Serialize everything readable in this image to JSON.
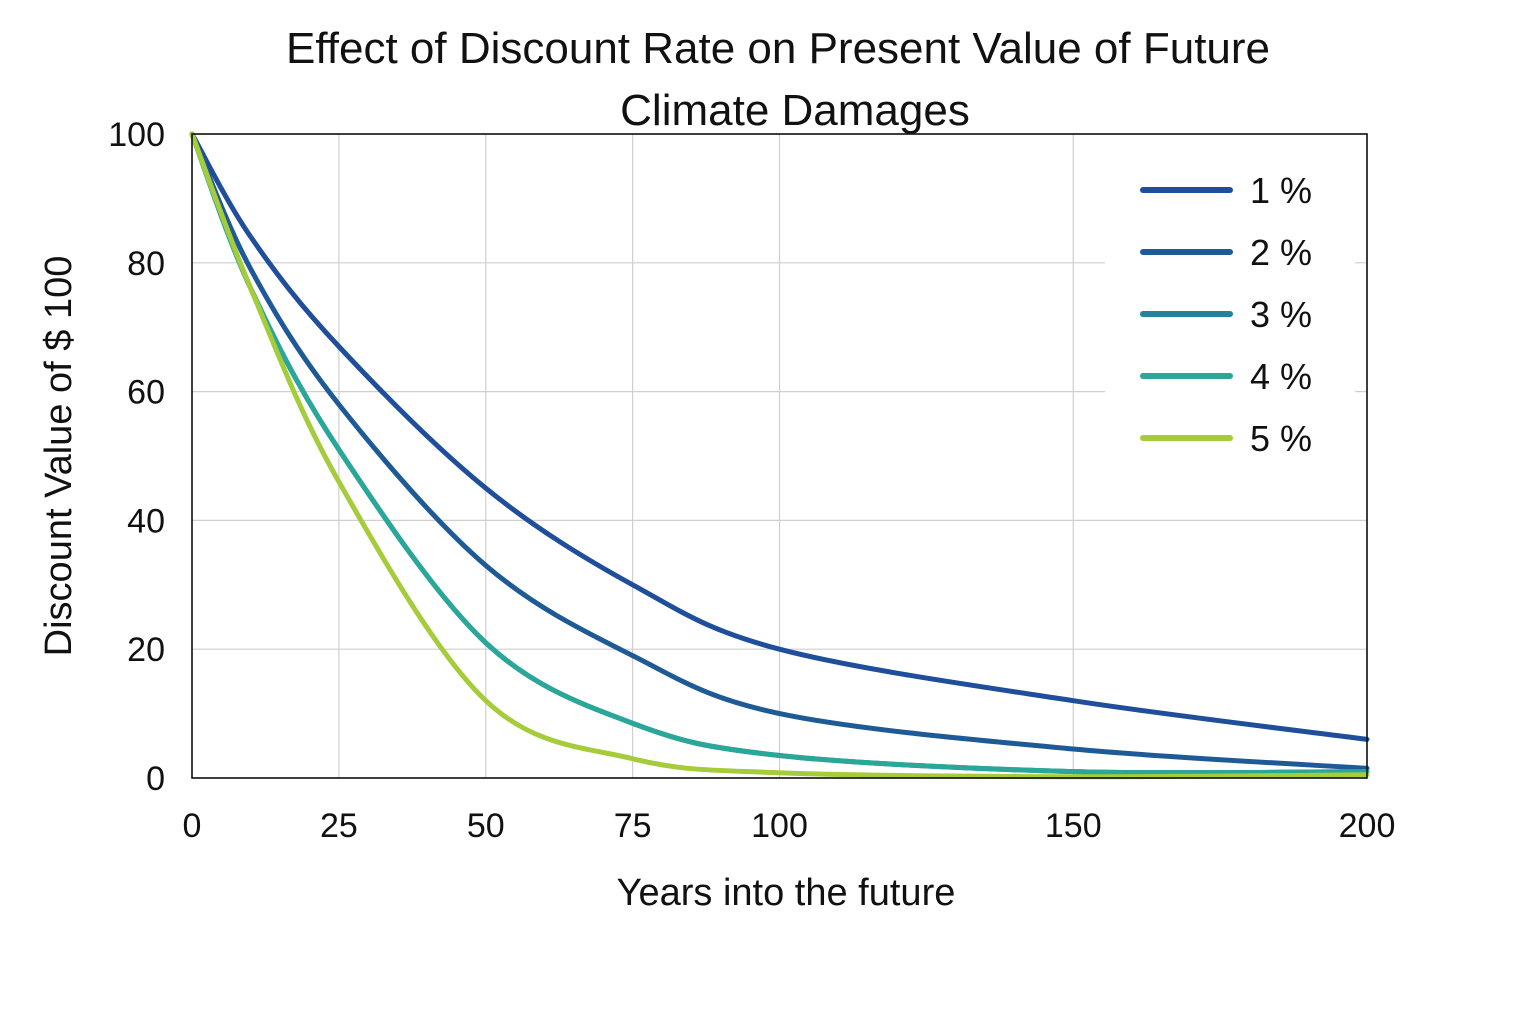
{
  "chart_data": {
    "type": "line",
    "title": [
      "Effect of Discount Rate on Present Value of Future",
      "Climate Damages"
    ],
    "xlabel": "Years into the future",
    "ylabel": "Discount Value of $ 100",
    "xlim": [
      0,
      200
    ],
    "ylim": [
      0,
      100
    ],
    "x_ticks": [
      0,
      25,
      50,
      75,
      100,
      150,
      200
    ],
    "y_ticks": [
      0,
      20,
      40,
      60,
      80,
      100
    ],
    "grid": true,
    "legend_position": "top-right",
    "x": [
      0,
      10,
      25,
      50,
      75,
      100,
      150,
      200
    ],
    "series": [
      {
        "name": "1 %",
        "color": "#1f4e9a",
        "values": [
          100,
          84,
          67,
          45,
          30,
          20,
          12,
          6
        ]
      },
      {
        "name": "2 %",
        "color": "#1e5a96",
        "values": [
          100,
          79,
          58,
          33,
          19,
          10,
          4.5,
          1.5
        ]
      },
      {
        "name": "3 %",
        "color": "#23839a",
        "values": [
          100,
          76,
          51,
          21,
          8.5,
          3.5,
          1,
          1
        ]
      },
      {
        "name": "4 %",
        "color": "#2aa799",
        "values": [
          100,
          76,
          51,
          21,
          8.5,
          3.5,
          1,
          1
        ]
      },
      {
        "name": "5 %",
        "color": "#a6cc3c",
        "values": [
          100,
          76,
          46,
          12,
          3,
          0.8,
          0.2,
          0.5
        ]
      }
    ]
  }
}
